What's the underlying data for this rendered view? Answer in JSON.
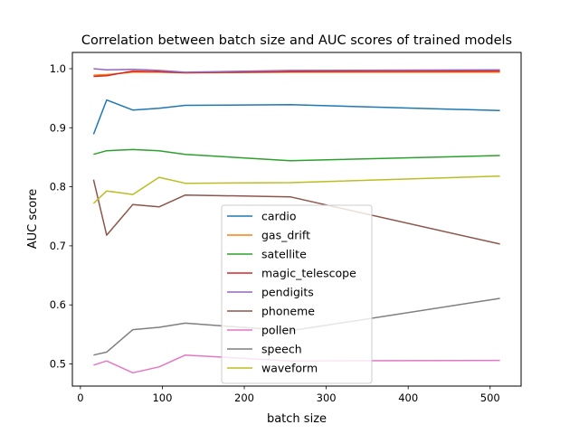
{
  "chart_data": {
    "type": "line",
    "title": "Correlation between batch size and AUC scores of trained models",
    "xlabel": "batch size",
    "ylabel": "AUC score",
    "xlim": [
      -9.8,
      537.8
    ],
    "ylim": [
      0.4625,
      1.0275
    ],
    "xticks": [
      0,
      100,
      200,
      300,
      400,
      500
    ],
    "yticks": [
      0.5,
      0.6,
      0.7,
      0.8,
      0.9,
      1.0
    ],
    "xtick_labels": [
      "0",
      "100",
      "200",
      "300",
      "400",
      "500"
    ],
    "ytick_labels": [
      "0.5",
      "0.6",
      "0.7",
      "0.8",
      "0.9",
      "1.0"
    ],
    "grid": false,
    "legend_position": "lower center",
    "x": [
      16,
      32,
      64,
      96,
      128,
      256,
      512
    ],
    "series": [
      {
        "name": "cardio",
        "color": "#1f77b4",
        "values": [
          0.889,
          0.947,
          0.93,
          0.933,
          0.938,
          0.939,
          0.929
        ]
      },
      {
        "name": "gas_drift",
        "color": "#ff7f0e",
        "values": [
          0.989,
          0.99,
          0.994,
          0.994,
          0.993,
          0.994,
          0.994
        ]
      },
      {
        "name": "satellite",
        "color": "#2ca02c",
        "values": [
          0.855,
          0.861,
          0.863,
          0.861,
          0.855,
          0.844,
          0.853
        ]
      },
      {
        "name": "magic_telescope",
        "color": "#d62728",
        "values": [
          0.987,
          0.988,
          0.996,
          0.995,
          0.993,
          0.995,
          0.996
        ]
      },
      {
        "name": "pendigits",
        "color": "#9467bd",
        "values": [
          1.0,
          0.998,
          0.999,
          0.997,
          0.994,
          0.997,
          0.998
        ]
      },
      {
        "name": "phoneme",
        "color": "#8c564b",
        "values": [
          0.812,
          0.718,
          0.77,
          0.766,
          0.786,
          0.783,
          0.703
        ]
      },
      {
        "name": "pollen",
        "color": "#e377c2",
        "values": [
          0.498,
          0.505,
          0.485,
          0.495,
          0.515,
          0.505,
          0.506
        ]
      },
      {
        "name": "speech",
        "color": "#7f7f7f",
        "values": [
          0.515,
          0.52,
          0.558,
          0.562,
          0.569,
          0.556,
          0.611
        ]
      },
      {
        "name": "waveform",
        "color": "#bcbd22",
        "values": [
          0.772,
          0.793,
          0.787,
          0.816,
          0.806,
          0.807,
          0.818
        ]
      }
    ]
  }
}
